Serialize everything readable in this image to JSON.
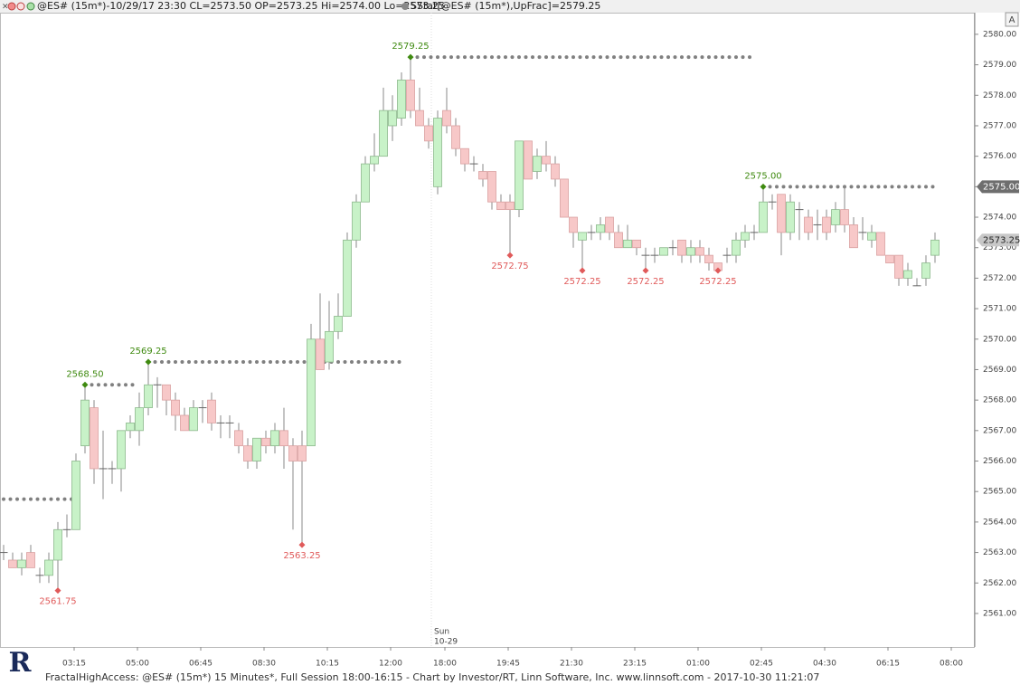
{
  "chart_data": {
    "type": "candlestick",
    "title": "@ES# (15m*)-10/29/17 23:30 CL=2573.50 OP=2573.25 Hi=2574.00 Lo=2573.25",
    "subtitle": "SStat[@ES# (15m*),UpFrac]=2579.25",
    "footer": "FractalHighAccess: @ES# (15m*) 15 Minutes*, Full Session 18:00-16:15 - Chart by Investor/RT, Linn Software, Inc. www.linnsoft.com - 2017-10-30 11:21:07",
    "button": "A",
    "logo": "R",
    "categories": [
      null,
      null,
      null,
      null,
      null,
      null,
      null,
      null,
      "03:15",
      null,
      null,
      null,
      null,
      null,
      null,
      "05:00",
      null,
      null,
      null,
      null,
      null,
      null,
      "06:45",
      null,
      null,
      null,
      null,
      null,
      null,
      "08:30",
      null,
      null,
      null,
      null,
      null,
      null,
      "10:15",
      null,
      null,
      null,
      null,
      null,
      null,
      "12:00",
      null,
      null,
      null,
      null,
      null,
      "18:00",
      null,
      null,
      null,
      null,
      null,
      null,
      "19:45",
      null,
      null,
      null,
      null,
      null,
      null,
      "21:30",
      null,
      null,
      null,
      null,
      null,
      null,
      "23:15",
      null,
      null,
      null,
      null,
      null,
      null,
      "01:00",
      null,
      null,
      null,
      null,
      null,
      null,
      "02:45",
      null,
      null,
      null,
      null,
      null,
      null,
      "04:30",
      null,
      null,
      null,
      null,
      null,
      null,
      "06:15",
      null,
      null,
      null,
      null,
      null,
      null,
      "08:00"
    ],
    "open": [
      2563,
      2562.75,
      2562.5,
      2563,
      2562.25,
      2562.25,
      2562.75,
      2563.75,
      2563.75,
      2566.5,
      2567.75,
      2565.75,
      2565.75,
      2565.75,
      2567,
      2567,
      2567.75,
      2568.5,
      2568.5,
      2568,
      2567.5,
      2567,
      2567.75,
      2568,
      2567.25,
      2567.25,
      2567,
      2566.5,
      2566,
      2566.75,
      2566.5,
      2567,
      2566.5,
      2566.5,
      2566.5,
      2570,
      2569.25,
      2570.25,
      2570.75,
      2573.25,
      2574.5,
      2575.75,
      2576,
      2577,
      2577.25,
      2578.5,
      2577.5,
      2577,
      2575,
      2577.5,
      2577,
      2576.25,
      2575.75,
      2575.5,
      2575.5,
      2574.5,
      2574.5,
      2574.25,
      2576.5,
      2575.5,
      2576,
      2575.75,
      2575.25,
      2574,
      2573.25,
      2573.5,
      2573.5,
      2574,
      2573.5,
      2573,
      2573.25,
      2572.75,
      2572.75,
      2572.75,
      2573,
      2573.25,
      2572.75,
      2573,
      2572.75,
      2572.5,
      2572.75,
      2572.75,
      2573.25,
      2573.5,
      2573.5,
      2574.5,
      2574.75,
      2573.5,
      2574.25,
      2574,
      2573.75,
      2574,
      2573.75,
      2574.25,
      2573.75,
      2573.5,
      2573.25,
      2573.5,
      2572.75,
      2572.75,
      2572,
      2571.75,
      2572,
      2572.75,
      null,
      null
    ],
    "high": [
      2563.25,
      2563,
      2563,
      2563.25,
      2562.5,
      2563,
      2564,
      2564.25,
      2566.25,
      2568.5,
      2568,
      2567,
      2566,
      2567,
      2567.5,
      2568.25,
      2569.25,
      2568.75,
      2568.5,
      2568.25,
      2567.75,
      2568,
      2568,
      2568.25,
      2567.5,
      2567.5,
      2567.25,
      2566.75,
      2566.75,
      2567,
      2567.25,
      2567.75,
      2566.75,
      2567,
      2570.5,
      2571.5,
      2571.25,
      2571.5,
      2573.5,
      2574.75,
      2576,
      2576.75,
      2578.25,
      2578,
      2578.75,
      2579.25,
      2578.25,
      2577.25,
      2577.5,
      2578.25,
      2577.25,
      2576.25,
      2576,
      2575.75,
      2575.5,
      2574.75,
      2574.75,
      2576.5,
      2576.5,
      2576.25,
      2576.5,
      2576,
      2575.25,
      2574,
      2573.5,
      2573.75,
      2574,
      2574,
      2573.75,
      2573.75,
      2573.25,
      2573,
      2573,
      2573,
      2573.25,
      2573.25,
      2573.25,
      2573.25,
      2573,
      2572.5,
      2573,
      2573.5,
      2573.75,
      2573.75,
      2575,
      2574.75,
      2574.75,
      2574.75,
      2574.5,
      2574.25,
      2574.25,
      2574.25,
      2574.5,
      2575,
      2574,
      2574,
      2573.75,
      2573.5,
      2572.75,
      2572.75,
      2572.5,
      2572,
      2572.75,
      2573.5,
      null,
      null
    ],
    "low": [
      2562.75,
      2562.5,
      2562.25,
      2562.5,
      2562,
      2562,
      2561.75,
      2563.5,
      2563.75,
      2566.25,
      2565.25,
      2564.75,
      2565.25,
      2565,
      2566.75,
      2566.5,
      2567.5,
      2567.75,
      2567.5,
      2567,
      2567,
      2567,
      2567.25,
      2567,
      2566.75,
      2566.75,
      2566.25,
      2565.75,
      2565.75,
      2566.25,
      2566.25,
      2565.75,
      2563.75,
      2563.25,
      2566.5,
      2569,
      2569,
      2570,
      2570.75,
      2573,
      2574.5,
      2575.5,
      2576,
      2576.5,
      2577,
      2577.25,
      2577,
      2576.25,
      2574.75,
      2576.75,
      2576,
      2575.5,
      2575.5,
      2575,
      2574.25,
      2574.25,
      2572.75,
      2574,
      2575.25,
      2575.25,
      2575.5,
      2575,
      2574,
      2573,
      2572.25,
      2573.25,
      2573.25,
      2573.25,
      2573,
      2573,
      2572.75,
      2572.25,
      2572.5,
      2572.75,
      2572.75,
      2572.5,
      2572.5,
      2572.5,
      2572.25,
      2572.25,
      2572.5,
      2572.5,
      2573,
      2573.25,
      2573.5,
      2574.25,
      2572.75,
      2573.25,
      2573.25,
      2573.25,
      2573.25,
      2573.25,
      2573.5,
      2573.5,
      2573,
      2573.25,
      2573,
      2572.75,
      2572.5,
      2571.75,
      2571.75,
      2571.75,
      2571.75,
      2572.5,
      null,
      null
    ],
    "close": [
      2563,
      2562.5,
      2562.75,
      2562.5,
      2562.25,
      2562.75,
      2563.75,
      2563.75,
      2566,
      2568,
      2565.75,
      2565.75,
      2565.75,
      2567,
      2567.25,
      2567.75,
      2568.5,
      2568.5,
      2568,
      2567.5,
      2567,
      2567.75,
      2567.75,
      2567.25,
      2567.25,
      2567.25,
      2566.5,
      2566,
      2566.75,
      2566.5,
      2567,
      2566.5,
      2566,
      2566,
      2570,
      2569,
      2570.25,
      2570.75,
      2573.25,
      2574.5,
      2575.75,
      2576,
      2577.5,
      2577.5,
      2578.5,
      2577.5,
      2577,
      2576.5,
      2577.25,
      2577,
      2576.25,
      2575.75,
      2575.75,
      2575.25,
      2574.5,
      2574.25,
      2574.25,
      2576.5,
      2575.25,
      2576,
      2575.75,
      2575.25,
      2574,
      2573.5,
      2573.5,
      2573.5,
      2573.75,
      2573.5,
      2573,
      2573.25,
      2573,
      2572.75,
      2572.75,
      2573,
      2573,
      2572.75,
      2573,
      2572.75,
      2572.5,
      2572.25,
      2572.75,
      2573.25,
      2573.5,
      2573.5,
      2574.5,
      2574.5,
      2573.5,
      2574.5,
      2574.25,
      2573.5,
      2573.75,
      2573.5,
      2574.25,
      2573.75,
      2573,
      2573.5,
      2573.5,
      2572.75,
      2572.5,
      2572,
      2572.25,
      2571.75,
      2572.5,
      2573.25,
      null,
      null
    ],
    "up_color": "#c8f2c8",
    "down_color": "#f7c8c8",
    "fractal_highs": {
      "bars": [
        9,
        16,
        45,
        84
      ],
      "values": [
        2568.5,
        2569.25,
        2579.25,
        2575
      ],
      "value_labels": [
        "2568.50",
        "2569.25",
        "2579.25",
        "2575.00"
      ],
      "color": "#3f8a10"
    },
    "fractal_lows": {
      "bars": [
        6,
        33,
        56,
        64,
        71,
        79
      ],
      "values": [
        2561.75,
        2563.25,
        2572.75,
        2572.25,
        2572.25,
        2572.25
      ],
      "value_labels": [
        "2561.75",
        "2563.25",
        "2572.75",
        "2572.25",
        "2572.25",
        "2572.25"
      ],
      "color": "#e05a5a"
    },
    "levels": [
      {
        "value": 2564.75,
        "bars": [
          0,
          8
        ]
      },
      {
        "value": 2568.5,
        "bars": [
          9,
          15
        ]
      },
      {
        "value": 2569.25,
        "bars": [
          16,
          44
        ]
      },
      {
        "value": 2579.25,
        "bars": [
          45,
          83
        ]
      },
      {
        "value": 2575,
        "bars": [
          84,
          103
        ]
      }
    ],
    "level_tag": {
      "value": 2575,
      "label": "2575.00"
    },
    "last_tag": {
      "value": 2573.25,
      "label": "2573.25"
    },
    "session_break": {
      "bar": 48,
      "text": [
        "Sun",
        "10-29"
      ]
    },
    "ylim": [
      2559.9,
      2580.71
    ],
    "yticks": [
      {
        "value": 2561,
        "label": "2561.00"
      },
      {
        "value": 2562,
        "label": "2562.00"
      },
      {
        "value": 2563,
        "label": "2563.00"
      },
      {
        "value": 2564,
        "label": "2564.00"
      },
      {
        "value": 2565,
        "label": "2565.00"
      },
      {
        "value": 2566,
        "label": "2566.00"
      },
      {
        "value": 2567,
        "label": "2567.00"
      },
      {
        "value": 2568,
        "label": "2568.00"
      },
      {
        "value": 2569,
        "label": "2569.00"
      },
      {
        "value": 2570,
        "label": "2570.00"
      },
      {
        "value": 2571,
        "label": "2571.00"
      },
      {
        "value": 2572,
        "label": "2572.00"
      },
      {
        "value": 2573,
        "label": "2573.00"
      },
      {
        "value": 2574,
        "label": "2574.00"
      },
      {
        "value": 2575,
        "label": "2575.00"
      },
      {
        "value": 2576,
        "label": "2576.00"
      },
      {
        "value": 2577,
        "label": "2577.00"
      },
      {
        "value": 2578,
        "label": "2578.00"
      },
      {
        "value": 2579,
        "label": "2579.00"
      },
      {
        "value": 2580,
        "label": "2580.00"
      }
    ]
  }
}
